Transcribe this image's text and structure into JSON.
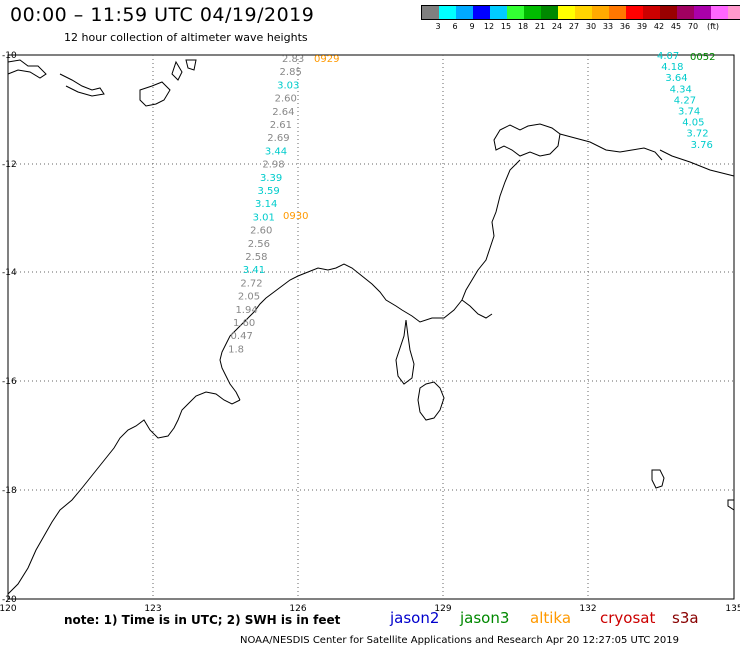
{
  "title": "00:00 – 11:59 UTC 04/19/2019",
  "subtitle": "12 hour collection of altimeter wave heights",
  "colorscale": {
    "unit": "(ft)",
    "colors": [
      "#7f7f7f",
      "#00ffff",
      "#00aaff",
      "#0000ff",
      "#00ccff",
      "#33ff33",
      "#00bb00",
      "#008800",
      "#ffff00",
      "#ffd400",
      "#ffaa00",
      "#ff7700",
      "#ff0000",
      "#cc0000",
      "#990000",
      "#a00060",
      "#aa00aa",
      "#ff66ff",
      "#ff99cc",
      "#000000"
    ],
    "ticks": [
      "3",
      "6",
      "9",
      "12",
      "15",
      "18",
      "21",
      "24",
      "27",
      "30",
      "33",
      "36",
      "39",
      "42",
      "45",
      "70"
    ]
  },
  "axes": {
    "lon_ticks": [
      "120",
      "123",
      "126",
      "129",
      "132",
      "135"
    ],
    "lat_ticks": [
      "-10",
      "-12",
      "-14",
      "-16",
      "-18",
      "-20"
    ]
  },
  "tracks": [
    {
      "name": "track-left",
      "time_labels": [
        {
          "text": "0929",
          "color": "#ff9900"
        },
        {
          "text": "0930",
          "color": "#ff9900"
        }
      ],
      "values": [
        {
          "v": "2.83",
          "c": "#888888"
        },
        {
          "v": "2.85",
          "c": "#888888"
        },
        {
          "v": "3.03",
          "c": "#00cccc"
        },
        {
          "v": "2.60",
          "c": "#888888"
        },
        {
          "v": "2.64",
          "c": "#888888"
        },
        {
          "v": "2.61",
          "c": "#888888"
        },
        {
          "v": "2.69",
          "c": "#888888"
        },
        {
          "v": "3.44",
          "c": "#00cccc"
        },
        {
          "v": "2.98",
          "c": "#888888"
        },
        {
          "v": "3.39",
          "c": "#00cccc"
        },
        {
          "v": "3.59",
          "c": "#00cccc"
        },
        {
          "v": "3.14",
          "c": "#00cccc"
        },
        {
          "v": "3.01",
          "c": "#00cccc"
        },
        {
          "v": "2.60",
          "c": "#888888"
        },
        {
          "v": "2.56",
          "c": "#888888"
        },
        {
          "v": "2.58",
          "c": "#888888"
        },
        {
          "v": "3.41",
          "c": "#00cccc"
        },
        {
          "v": "2.72",
          "c": "#888888"
        },
        {
          "v": "2.05",
          "c": "#888888"
        },
        {
          "v": "1.94",
          "c": "#888888"
        },
        {
          "v": "1.60",
          "c": "#888888"
        },
        {
          "v": "0.47",
          "c": "#888888"
        },
        {
          "v": "1.8",
          "c": "#888888"
        }
      ]
    },
    {
      "name": "track-right",
      "time_labels": [
        {
          "text": "0052",
          "color": "#008800"
        }
      ],
      "values": [
        {
          "v": "4.07",
          "c": "#00cccc"
        },
        {
          "v": "4.18",
          "c": "#00cccc"
        },
        {
          "v": "3.64",
          "c": "#00cccc"
        },
        {
          "v": "4.34",
          "c": "#00cccc"
        },
        {
          "v": "4.27",
          "c": "#00cccc"
        },
        {
          "v": "3.74",
          "c": "#00cccc"
        },
        {
          "v": "4.05",
          "c": "#00cccc"
        },
        {
          "v": "3.72",
          "c": "#00cccc"
        },
        {
          "v": "3.76",
          "c": "#00cccc"
        }
      ]
    }
  ],
  "note": "note: 1) Time is in UTC; 2) SWH is in feet",
  "legend": [
    {
      "name": "jason2",
      "color": "#0000cc"
    },
    {
      "name": "jason3",
      "color": "#008800"
    },
    {
      "name": "altika",
      "color": "#ff9900"
    },
    {
      "name": "cryosat",
      "color": "#cc0000"
    },
    {
      "name": "s3a",
      "color": "#880000"
    }
  ],
  "credit": "NOAA/NESDIS Center for Satellite Applications and Research   Apr 20 12:27:05 UTC 2019"
}
